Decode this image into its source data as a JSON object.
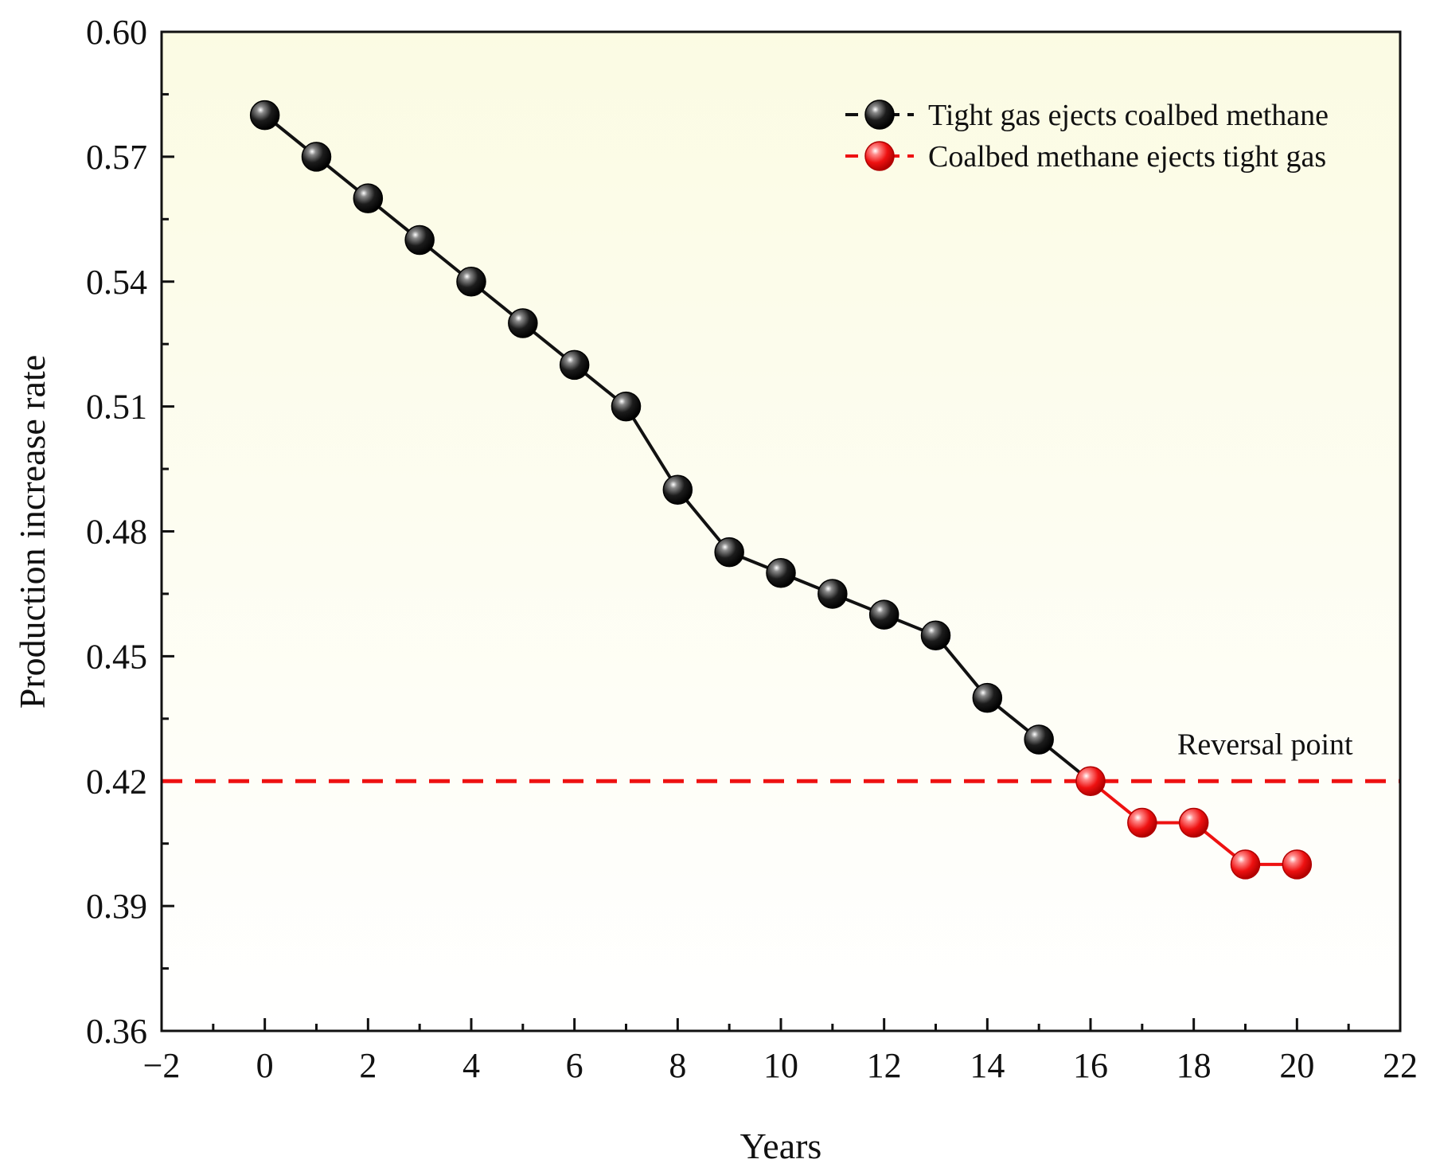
{
  "chart_data": {
    "type": "line",
    "title": "",
    "xlabel": "Years",
    "ylabel": "Production increase rate",
    "xlim": [
      -2,
      22
    ],
    "ylim": [
      0.36,
      0.6
    ],
    "x_ticks": [
      -2,
      0,
      2,
      4,
      6,
      8,
      10,
      12,
      14,
      16,
      18,
      20,
      22
    ],
    "x_tick_labels": [
      "−2",
      "0",
      "2",
      "4",
      "6",
      "8",
      "10",
      "12",
      "14",
      "16",
      "18",
      "20",
      "22"
    ],
    "y_ticks": [
      0.36,
      0.39,
      0.42,
      0.45,
      0.48,
      0.51,
      0.54,
      0.57,
      0.6
    ],
    "y_tick_labels": [
      "0.36",
      "0.39",
      "0.42",
      "0.45",
      "0.48",
      "0.51",
      "0.54",
      "0.57",
      "0.60"
    ],
    "legend_position": "top-right",
    "series": [
      {
        "name": "Tight gas ejects coalbed methane",
        "color": "#111111",
        "x": [
          0,
          1,
          2,
          3,
          4,
          5,
          6,
          7,
          8,
          9,
          10,
          11,
          12,
          13,
          14,
          15
        ],
        "y": [
          0.58,
          0.57,
          0.56,
          0.55,
          0.54,
          0.53,
          0.52,
          0.51,
          0.49,
          0.475,
          0.47,
          0.465,
          0.46,
          0.455,
          0.44,
          0.43
        ]
      },
      {
        "name": "Coalbed methane ejects tight gas",
        "color": "#ee1111",
        "x": [
          16,
          17,
          18,
          19,
          20
        ],
        "y": [
          0.42,
          0.41,
          0.41,
          0.4,
          0.4
        ]
      }
    ],
    "reference_line": {
      "y": 0.42,
      "color": "#ee1111",
      "style": "dashed"
    },
    "annotation": {
      "text": "Reversal point",
      "x": 20,
      "y": 0.42
    },
    "background_colors": [
      "#fbfbe3",
      "#ffffff"
    ]
  }
}
